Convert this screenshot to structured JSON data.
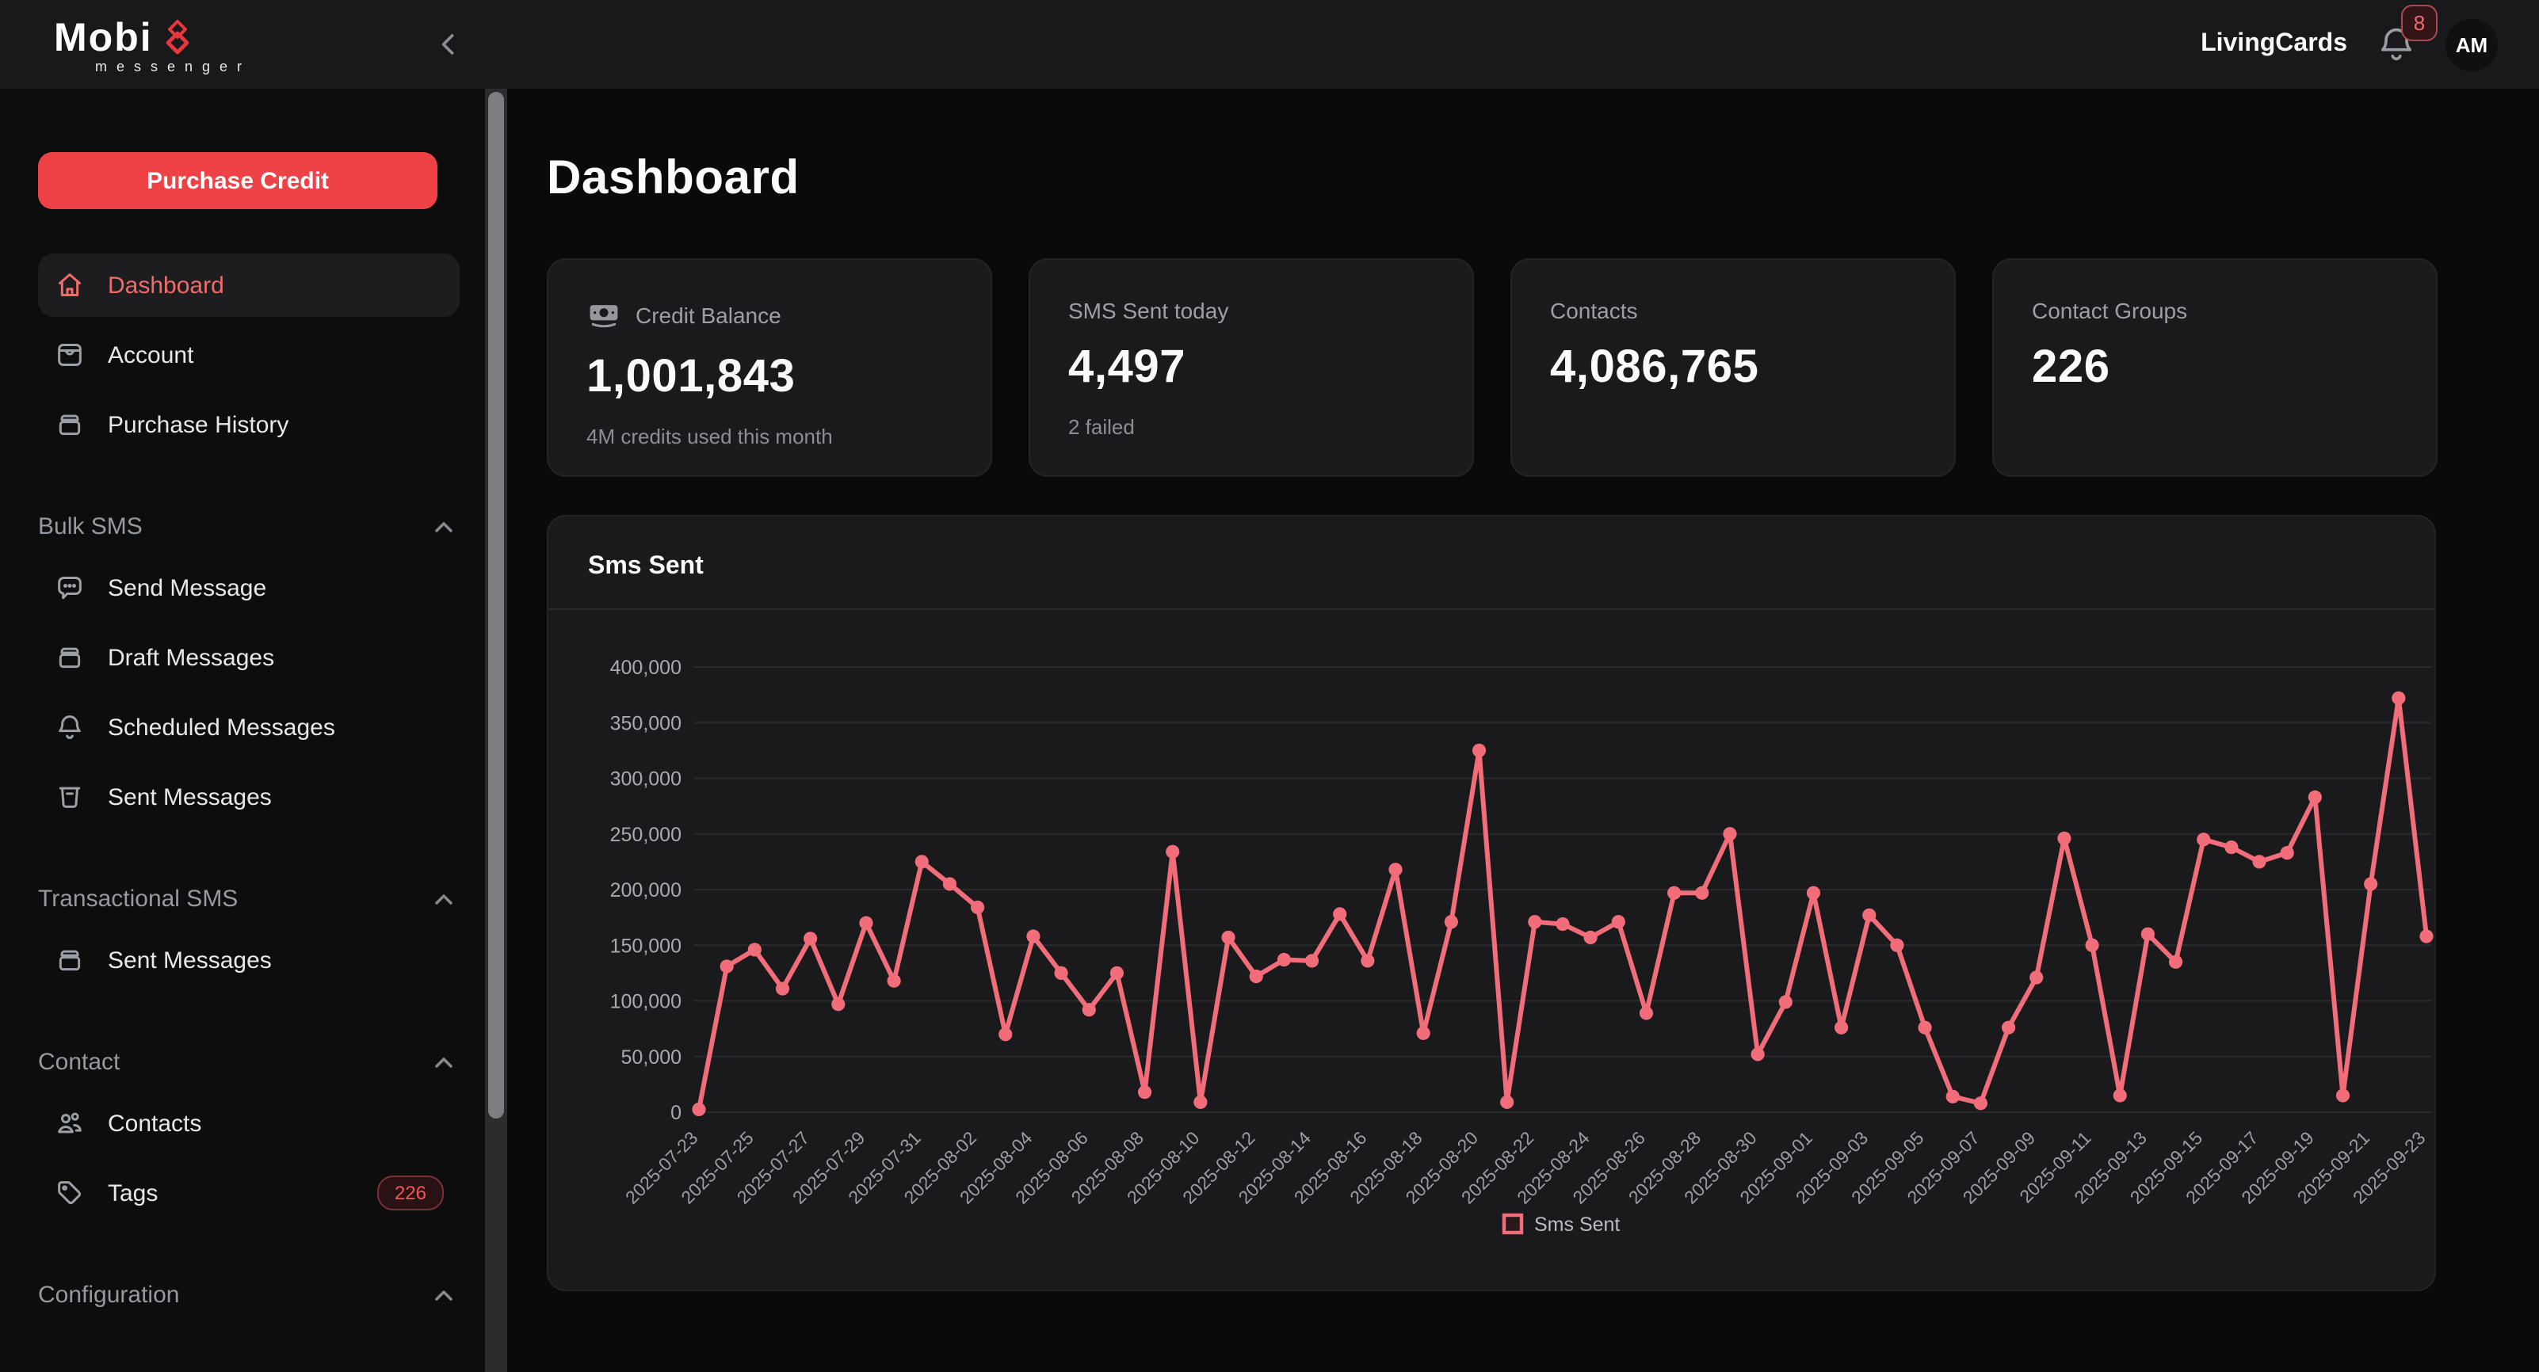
{
  "topbar": {
    "logo_primary": "Mobi",
    "logo_secondary": "messenger",
    "account_name": "LivingCards",
    "notification_count": "8",
    "avatar_initials": "AM"
  },
  "sidebar": {
    "purchase_credit_label": "Purchase Credit",
    "primary_items": [
      {
        "label": "Dashboard",
        "icon": "home",
        "active": true
      },
      {
        "label": "Account",
        "icon": "wallet",
        "active": false
      },
      {
        "label": "Purchase History",
        "icon": "archive",
        "active": false
      }
    ],
    "sections": [
      {
        "label": "Bulk SMS",
        "items": [
          {
            "label": "Send Message",
            "icon": "chat-bubble"
          },
          {
            "label": "Draft Messages",
            "icon": "archive"
          },
          {
            "label": "Scheduled Messages",
            "icon": "bell"
          },
          {
            "label": "Sent Messages",
            "icon": "outbox"
          }
        ]
      },
      {
        "label": "Transactional SMS",
        "items": [
          {
            "label": "Sent Messages",
            "icon": "archive"
          }
        ]
      },
      {
        "label": "Contact",
        "items": [
          {
            "label": "Contacts",
            "icon": "users"
          },
          {
            "label": "Tags",
            "icon": "tag",
            "badge": "226"
          }
        ]
      },
      {
        "label": "Configuration",
        "items": []
      }
    ]
  },
  "page": {
    "title": "Dashboard"
  },
  "stat_cards": [
    {
      "label": "Credit Balance",
      "icon": "banknote",
      "value": "1,001,843",
      "sub": "4M credits used this month"
    },
    {
      "label": "SMS Sent today",
      "value": "4,497",
      "sub": "2 failed"
    },
    {
      "label": "Contacts",
      "value": "4,086,765",
      "sub": ""
    },
    {
      "label": "Contact Groups",
      "value": "226",
      "sub": ""
    }
  ],
  "chart_card": {
    "title": "Sms Sent"
  },
  "theme": {
    "accent_red": "#ee4247",
    "chart_line": "#f26d7a"
  },
  "chart_data": {
    "type": "line",
    "title": "Sms Sent",
    "legend": "Sms Sent",
    "legend_position": "bottom",
    "grid": "horizontal",
    "line_color": "#f26d7a",
    "ylim": [
      0,
      400000
    ],
    "ytick_step": 50000,
    "yticks": [
      0,
      50000,
      100000,
      150000,
      200000,
      250000,
      300000,
      350000,
      400000
    ],
    "xtick_every": 2,
    "x": [
      "2025-07-23",
      "2025-07-24",
      "2025-07-25",
      "2025-07-26",
      "2025-07-27",
      "2025-07-28",
      "2025-07-29",
      "2025-07-30",
      "2025-07-31",
      "2025-08-01",
      "2025-08-02",
      "2025-08-03",
      "2025-08-04",
      "2025-08-05",
      "2025-08-06",
      "2025-08-07",
      "2025-08-08",
      "2025-08-09",
      "2025-08-10",
      "2025-08-11",
      "2025-08-12",
      "2025-08-13",
      "2025-08-14",
      "2025-08-15",
      "2025-08-16",
      "2025-08-17",
      "2025-08-18",
      "2025-08-19",
      "2025-08-20",
      "2025-08-21",
      "2025-08-22",
      "2025-08-23",
      "2025-08-24",
      "2025-08-25",
      "2025-08-26",
      "2025-08-27",
      "2025-08-28",
      "2025-08-29",
      "2025-08-30",
      "2025-08-31",
      "2025-09-01",
      "2025-09-02",
      "2025-09-03",
      "2025-09-04",
      "2025-09-05",
      "2025-09-06",
      "2025-09-07",
      "2025-09-08",
      "2025-09-09",
      "2025-09-10",
      "2025-09-11",
      "2025-09-12",
      "2025-09-13",
      "2025-09-14",
      "2025-09-15",
      "2025-09-16",
      "2025-09-17",
      "2025-09-18",
      "2025-09-19",
      "2025-09-20",
      "2025-09-21",
      "2025-09-22",
      "2025-09-23"
    ],
    "values": [
      2500,
      131000,
      146000,
      111000,
      156000,
      97000,
      170000,
      118000,
      225000,
      205000,
      184000,
      70000,
      158000,
      125000,
      92000,
      125000,
      18000,
      234000,
      9000,
      157000,
      122000,
      137000,
      136000,
      178000,
      136000,
      218000,
      71000,
      171000,
      325000,
      9000,
      171000,
      169000,
      157000,
      171000,
      89000,
      197000,
      197000,
      250000,
      52000,
      99000,
      197000,
      76000,
      177000,
      150000,
      76000,
      14000,
      8000,
      76000,
      121000,
      246000,
      150000,
      15000,
      160000,
      135000,
      245000,
      238000,
      225000,
      233000,
      283000,
      15000,
      205000,
      372000,
      158000
    ]
  }
}
